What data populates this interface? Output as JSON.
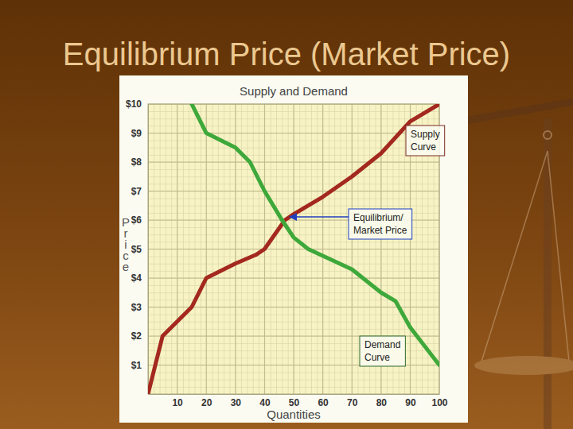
{
  "slide": {
    "title": "Equilibrium Price (Market Price)"
  },
  "chart_data": {
    "type": "line",
    "title": "Supply and Demand",
    "x_label": "Quantities",
    "y_label": "Price",
    "xlim": [
      0,
      100
    ],
    "ylim": [
      0,
      10
    ],
    "xticks": [
      10,
      20,
      30,
      40,
      50,
      60,
      70,
      80,
      90,
      100
    ],
    "yticks": [
      {
        "value": 1,
        "label": "$1"
      },
      {
        "value": 2,
        "label": "$2"
      },
      {
        "value": 3,
        "label": "$3"
      },
      {
        "value": 4,
        "label": "$4"
      },
      {
        "value": 5,
        "label": "$5"
      },
      {
        "value": 6,
        "label": "$6"
      },
      {
        "value": 7,
        "label": "$7"
      },
      {
        "value": 8,
        "label": "$8"
      },
      {
        "value": 9,
        "label": "$9"
      },
      {
        "value": 10,
        "label": "$10"
      }
    ],
    "grid": true,
    "series": [
      {
        "name": "Supply Curve",
        "color": "#a3281e",
        "x": [
          0,
          5,
          10,
          15,
          20,
          30,
          37,
          40,
          47,
          50,
          60,
          70,
          80,
          90,
          100
        ],
        "values": [
          0,
          2,
          2.5,
          3,
          4,
          4.5,
          4.8,
          5,
          6,
          6.2,
          6.8,
          7.5,
          8.3,
          9.4,
          10
        ]
      },
      {
        "name": "Demand Curve",
        "color": "#3ea83a",
        "x": [
          15,
          20,
          30,
          35,
          40,
          46,
          50,
          55,
          70,
          80,
          85,
          90,
          100
        ],
        "values": [
          10,
          9,
          8.5,
          8,
          7,
          6,
          5.4,
          5,
          4.3,
          3.5,
          3.2,
          2.3,
          1
        ]
      }
    ],
    "annotations": [
      {
        "text": "Equilibrium/ Market Price",
        "x": 47,
        "y": 6
      }
    ]
  }
}
